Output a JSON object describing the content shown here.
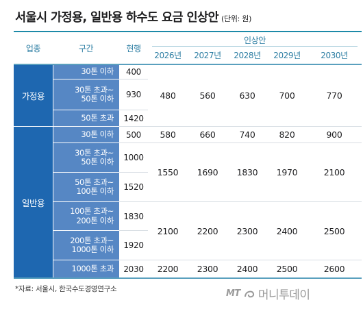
{
  "title": "서울시 가정용, 일반용 하수도 요금 인상안",
  "unit": "(단위: 원)",
  "headers": {
    "industry": "업종",
    "segment": "구간",
    "current": "현행",
    "proposal": "인상안",
    "years": [
      "2026년",
      "2027년",
      "2028년",
      "2029년",
      "2030년"
    ]
  },
  "household": {
    "label": "가정용",
    "segments": [
      "30톤 이하",
      "30톤 초과~\n50톤 이하",
      "50톤 초과"
    ],
    "current": [
      "400",
      "930",
      "1420"
    ],
    "proposal": [
      "480",
      "560",
      "630",
      "700",
      "770"
    ]
  },
  "general": {
    "label": "일반용",
    "segments": [
      "30톤 이하",
      "30톤 초과~\n50톤 이하",
      "50톤 초과~\n100톤 이하",
      "100톤 초과~\n200톤 이하",
      "200톤 초과~\n1000톤 이하",
      "1000톤 초과"
    ],
    "current": [
      "500",
      "1000",
      "1520",
      "1830",
      "1920",
      "2030"
    ],
    "proposal_rows": [
      [
        "580",
        "660",
        "740",
        "820",
        "900"
      ],
      [
        "1550",
        "1690",
        "1830",
        "1970",
        "2100"
      ],
      [
        "2100",
        "2200",
        "2300",
        "2400",
        "2500"
      ],
      [
        "2200",
        "2300",
        "2400",
        "2500",
        "2600"
      ]
    ]
  },
  "source": "*자료: 서울시, 한국수도경영연구소",
  "logo": {
    "mark": "MT",
    "name": "머니투데이"
  },
  "colors": {
    "industry": "#1e67b0",
    "segment": "#5687c4",
    "header_text": "#2d7ea3",
    "rule": "#1d8aa8"
  }
}
